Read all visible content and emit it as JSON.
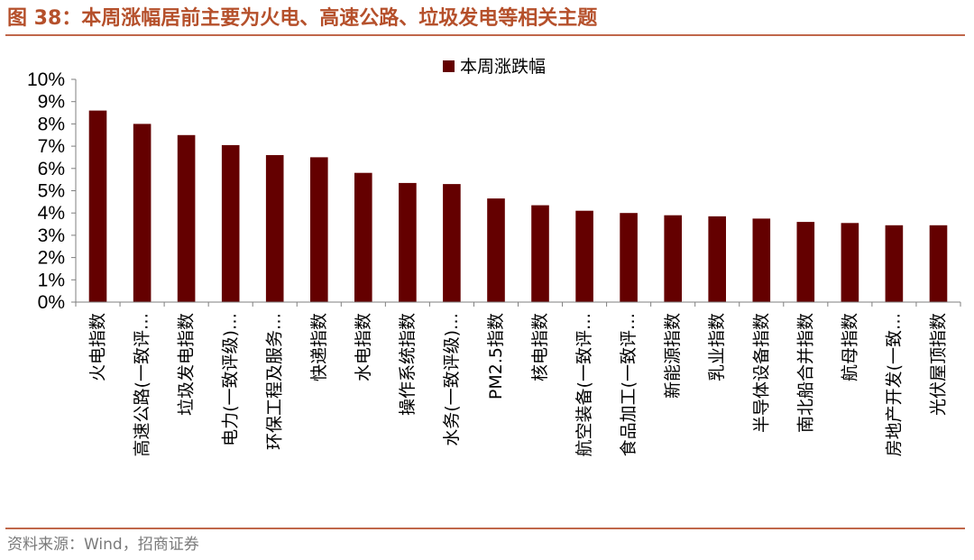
{
  "figure": {
    "title": "图 38：本周涨幅居前主要为火电、高速公路、垃圾发电等相关主题",
    "source": "资料来源：Wind，招商证券"
  },
  "colors": {
    "bar": "#640000",
    "accent": "#c0674a",
    "title": "#b5502b"
  },
  "chart_data": {
    "type": "bar",
    "categories": [
      "火电指数",
      "高速公路(一致评…",
      "垃圾发电指数",
      "电力(一致评级)…",
      "环保工程及服务…",
      "快递指数",
      "水电指数",
      "操作系统指数",
      "水务(一致评级)…",
      "PM2.5指数",
      "核电指数",
      "航空装备(一致评…",
      "食品加工(一致评…",
      "新能源指数",
      "乳业指数",
      "半导体设备指数",
      "南北船合并指数",
      "航母指数",
      "房地产开发(一致…",
      "光伏屋顶指数"
    ],
    "series": [
      {
        "name": "本周涨跌幅",
        "values": [
          8.6,
          8.0,
          7.5,
          7.05,
          6.6,
          6.5,
          5.8,
          5.35,
          5.3,
          4.65,
          4.35,
          4.1,
          4.0,
          3.9,
          3.85,
          3.75,
          3.6,
          3.55,
          3.45,
          3.45
        ]
      }
    ],
    "y_ticks": [
      "0%",
      "1%",
      "2%",
      "3%",
      "4%",
      "5%",
      "6%",
      "7%",
      "8%",
      "9%",
      "10%"
    ],
    "ylim": [
      0,
      10
    ],
    "legend": "top-center",
    "grid": false
  }
}
